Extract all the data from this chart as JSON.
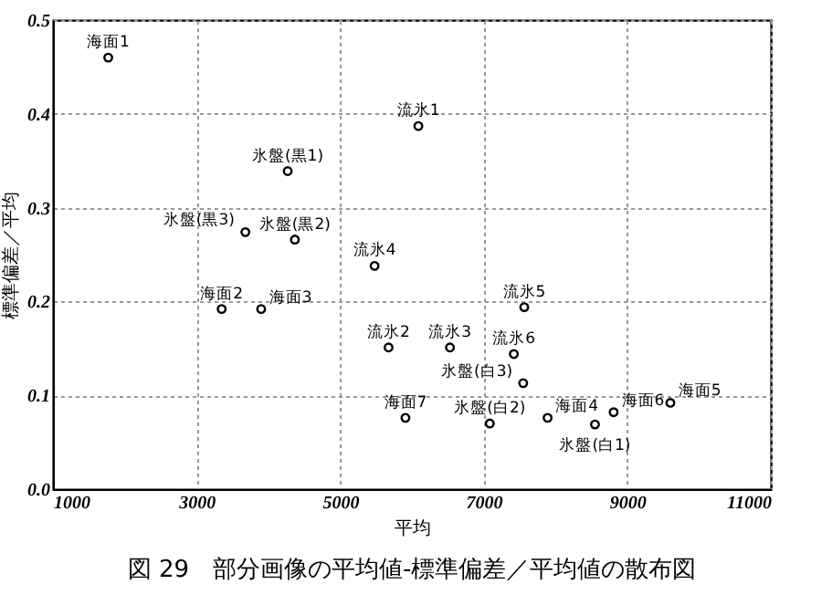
{
  "chart_data": {
    "type": "scatter",
    "title": "図 29　部分画像の平均値-標準偏差／平均値の散布図",
    "xlabel": "平均",
    "ylabel": "標準偏差／平均",
    "xlim": [
      1000,
      11000
    ],
    "xticks": [
      {
        "value": 1000,
        "label": "1000"
      },
      {
        "value": 3000,
        "label": "3000"
      },
      {
        "value": 5000,
        "label": "5000"
      },
      {
        "value": 7000,
        "label": "7000"
      },
      {
        "value": 9000,
        "label": "9000"
      },
      {
        "value": 11000,
        "label": "11000"
      }
    ],
    "ylim": [
      0,
      0.5
    ],
    "yticks": [
      {
        "value": 0,
        "label": "0.0"
      },
      0.1,
      0.2,
      0.3,
      0.4,
      0.5
    ],
    "grid": true,
    "marker": "circle",
    "x": [
      1770,
      6090,
      4270,
      4370,
      3680,
      5480,
      3350,
      3900,
      7565,
      5675,
      6530,
      7420,
      7550,
      5910,
      7085,
      7890,
      8550,
      8810,
      9600
    ],
    "series": [
      {
        "color": "#000000",
        "values": [
          0.46,
          0.387,
          0.339,
          0.266,
          0.274,
          0.238,
          0.192,
          0.192,
          0.194,
          0.151,
          0.151,
          0.144,
          0.113,
          0.076,
          0.07,
          0.076,
          0.069,
          0.082,
          0.092
        ]
      }
    ],
    "annotations": [
      {
        "text": "海面1",
        "x": 1770,
        "y": 0.46
      },
      {
        "text": "流氷1",
        "x": 6090,
        "y": 0.387
      },
      {
        "text": "氷盤(黒1)",
        "x": 4270,
        "y": 0.339
      },
      {
        "text": "氷盤(黒2)",
        "x": 4370,
        "y": 0.266
      },
      {
        "text": "氷盤(黒3)",
        "x": 3680,
        "y": 0.274
      },
      {
        "text": "流氷4",
        "x": 5480,
        "y": 0.238
      },
      {
        "text": "海面2",
        "x": 3350,
        "y": 0.192
      },
      {
        "text": "海面3",
        "x": 3900,
        "y": 0.192
      },
      {
        "text": "流氷5",
        "x": 7565,
        "y": 0.194
      },
      {
        "text": "流氷2",
        "x": 5675,
        "y": 0.151
      },
      {
        "text": "流氷3",
        "x": 6530,
        "y": 0.151
      },
      {
        "text": "流氷6",
        "x": 7420,
        "y": 0.144
      },
      {
        "text": "氷盤(白3)",
        "x": 7550,
        "y": 0.113
      },
      {
        "text": "海面7",
        "x": 5910,
        "y": 0.076
      },
      {
        "text": "氷盤(白2)",
        "x": 7085,
        "y": 0.07
      },
      {
        "text": "海面4",
        "x": 7890,
        "y": 0.076
      },
      {
        "text": "氷盤(白1)",
        "x": 8550,
        "y": 0.069
      },
      {
        "text": "海面6",
        "x": 8810,
        "y": 0.082
      },
      {
        "text": "海面5",
        "x": 9600,
        "y": 0.092
      }
    ]
  }
}
